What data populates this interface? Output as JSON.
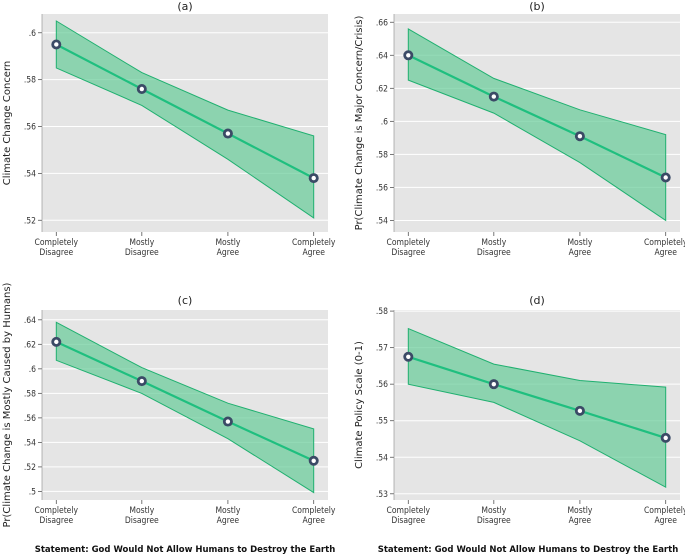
{
  "colors": {
    "panel_bg": "#e5e5e5",
    "grid": "#ffffff",
    "line": "#1fbf7f",
    "band_fill": "#66cc99",
    "band_edge": "#20b070",
    "marker_fill": "#3b4a66",
    "marker_ring": "#ffffff"
  },
  "x_caption": "Statement: God Would Not Allow Humans to Destroy the Earth",
  "chart_data": [
    {
      "type": "line",
      "title": "(a)",
      "ylabel": "Climate Change Concern",
      "categories": [
        [
          "Completely",
          "Disagree"
        ],
        [
          "Mostly",
          "Disagree"
        ],
        [
          "Mostly",
          "Agree"
        ],
        [
          "Completely",
          "Agree"
        ]
      ],
      "values": [
        0.595,
        0.576,
        0.557,
        0.538
      ],
      "lower": [
        0.585,
        0.569,
        0.546,
        0.521
      ],
      "upper": [
        0.605,
        0.583,
        0.567,
        0.556
      ],
      "ylim": [
        0.515,
        0.608
      ],
      "yticks": [
        0.52,
        0.54,
        0.56,
        0.58,
        0.6
      ],
      "yticklabels": [
        ".52",
        ".54",
        ".56",
        ".58",
        ".6"
      ]
    },
    {
      "type": "line",
      "title": "(b)",
      "ylabel": "Pr(Climate Change is Major Concern/Crisis)",
      "categories": [
        [
          "Completely",
          "Disagree"
        ],
        [
          "Mostly",
          "Disagree"
        ],
        [
          "Mostly",
          "Agree"
        ],
        [
          "Completely",
          "Agree"
        ]
      ],
      "values": [
        0.64,
        0.615,
        0.591,
        0.566
      ],
      "lower": [
        0.625,
        0.605,
        0.575,
        0.54
      ],
      "upper": [
        0.656,
        0.626,
        0.607,
        0.592
      ],
      "ylim": [
        0.533,
        0.665
      ],
      "yticks": [
        0.54,
        0.56,
        0.58,
        0.6,
        0.62,
        0.64,
        0.66
      ],
      "yticklabels": [
        ".54",
        ".56",
        ".58",
        ".6",
        ".62",
        ".64",
        ".66"
      ]
    },
    {
      "type": "line",
      "title": "(c)",
      "ylabel": "Pr(Climate Change is Mostly Caused by Humans)",
      "categories": [
        [
          "Completely",
          "Disagree"
        ],
        [
          "Mostly",
          "Disagree"
        ],
        [
          "Mostly",
          "Agree"
        ],
        [
          "Completely",
          "Agree"
        ]
      ],
      "values": [
        0.622,
        0.59,
        0.557,
        0.525
      ],
      "lower": [
        0.607,
        0.58,
        0.543,
        0.499
      ],
      "upper": [
        0.638,
        0.601,
        0.572,
        0.551
      ],
      "ylim": [
        0.493,
        0.648
      ],
      "yticks": [
        0.5,
        0.52,
        0.54,
        0.56,
        0.58,
        0.6,
        0.62,
        0.64
      ],
      "yticklabels": [
        ".5",
        ".52",
        ".54",
        ".56",
        ".58",
        ".6",
        ".62",
        ".64"
      ]
    },
    {
      "type": "line",
      "title": "(d)",
      "ylabel": "Climate Policy Scale (0-1)",
      "categories": [
        [
          "Completely",
          "Disagree"
        ],
        [
          "Mostly",
          "Disagree"
        ],
        [
          "Mostly",
          "Agree"
        ],
        [
          "Completely",
          "Agree"
        ]
      ],
      "values": [
        0.5675,
        0.56,
        0.5527,
        0.5453
      ],
      "lower": [
        0.56,
        0.555,
        0.5445,
        0.5318
      ],
      "upper": [
        0.5752,
        0.5655,
        0.561,
        0.5592
      ],
      "ylim": [
        0.5283,
        0.5803
      ],
      "yticks": [
        0.53,
        0.54,
        0.55,
        0.56,
        0.57,
        0.58
      ],
      "yticklabels": [
        ".53",
        ".54",
        ".55",
        ".56",
        ".57",
        ".58"
      ]
    }
  ]
}
